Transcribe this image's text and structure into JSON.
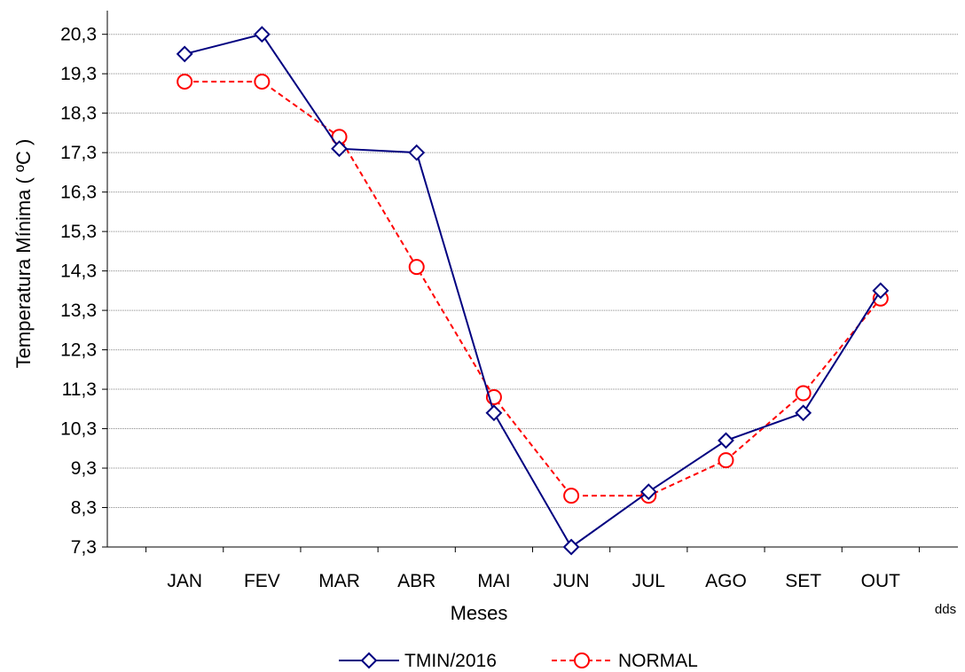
{
  "chart_data": {
    "type": "line",
    "categories": [
      "JAN",
      "FEV",
      "MAR",
      "ABR",
      "MAI",
      "JUN",
      "JUL",
      "AGO",
      "SET",
      "OUT"
    ],
    "series": [
      {
        "name": "TMIN/2016",
        "color": "#000080",
        "marker": "diamond",
        "line_style": "solid",
        "values": [
          19.8,
          20.3,
          17.4,
          17.3,
          10.7,
          7.3,
          8.7,
          10.0,
          10.7,
          13.8
        ]
      },
      {
        "name": "NORMAL",
        "color": "#ff0000",
        "marker": "circle",
        "line_style": "dashed",
        "values": [
          19.1,
          19.1,
          17.7,
          14.4,
          11.1,
          8.6,
          8.6,
          9.5,
          11.2,
          13.6
        ]
      }
    ],
    "yticks": [
      "7,3",
      "8,3",
      "9,3",
      "10,3",
      "11,3",
      "12,3",
      "13,3",
      "14,3",
      "15,3",
      "16,3",
      "17,3",
      "18,3",
      "19,3",
      "20,3"
    ],
    "ylim": [
      7.3,
      20.9
    ],
    "xlabel": "Meses",
    "ylabel": "Temperatura Mínima ( ºC )",
    "grid": true,
    "legend_position": "bottom",
    "note": "dds"
  }
}
